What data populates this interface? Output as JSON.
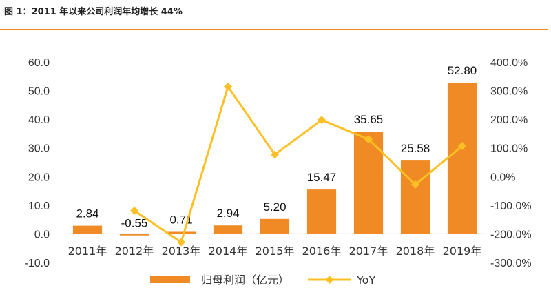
{
  "page": {
    "title": "图 1：2011 年以来公司利润年均增长 44%",
    "accent_color": "#f08a24"
  },
  "chart_data": {
    "type": "bar",
    "categories": [
      "2011年",
      "2012年",
      "2013年",
      "2014年",
      "2015年",
      "2016年",
      "2017年",
      "2018年",
      "2019年"
    ],
    "series": [
      {
        "name": "归母利润（亿元）",
        "type": "bar",
        "axis": "left",
        "color": "#f08a24",
        "values": [
          2.84,
          -0.55,
          0.71,
          2.94,
          5.2,
          15.47,
          35.65,
          25.58,
          52.8
        ],
        "labels": [
          "2.84",
          "-0.55",
          "0.71",
          "2.94",
          "5.20",
          "15.47",
          "35.65",
          "25.58",
          "52.80"
        ]
      },
      {
        "name": "YoY",
        "type": "line",
        "axis": "right",
        "color": "#fcc025",
        "marker": "diamond",
        "values": [
          null,
          -119.4,
          -229.1,
          314.1,
          76.9,
          197.5,
          130.4,
          -28.2,
          106.4
        ]
      }
    ],
    "y_left": {
      "ylim": [
        -10,
        60
      ],
      "ticks": [
        -10,
        0,
        10,
        20,
        30,
        40,
        50,
        60
      ],
      "tick_labels": [
        "-10.0",
        "0.0",
        "10.0",
        "20.0",
        "30.0",
        "40.0",
        "50.0",
        "60.0"
      ]
    },
    "y_right": {
      "ylim": [
        -300,
        400
      ],
      "ticks": [
        -300,
        -200,
        -100,
        0,
        100,
        200,
        300,
        400
      ],
      "tick_labels": [
        "-300.0%",
        "-200.0%",
        "-100.0%",
        "0.0%",
        "100.0%",
        "200.0%",
        "300.0%",
        "400.0%"
      ]
    },
    "grid": false,
    "legend": "bottom"
  }
}
